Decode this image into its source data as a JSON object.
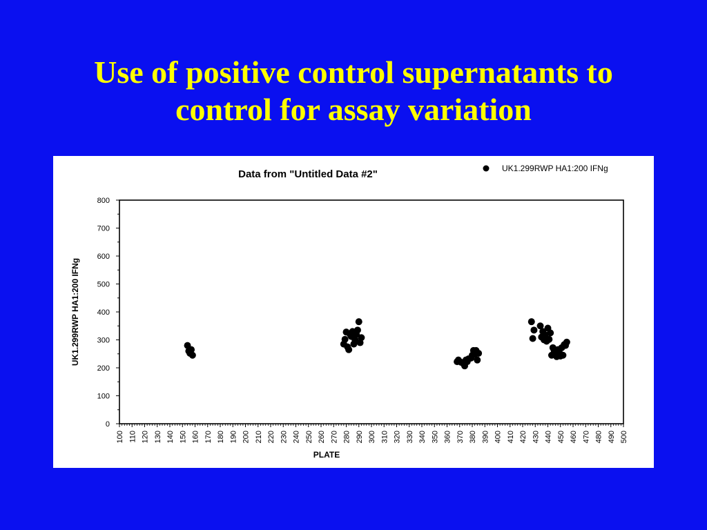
{
  "slide": {
    "title_line1": "Use of positive control supernatants to",
    "title_line2": "control for assay variation",
    "title_color": "#ffff00",
    "background_color": "#0a10f0"
  },
  "chart_data": {
    "type": "scatter",
    "title": "Data from \"Untitled Data #2\"",
    "xlabel": "PLATE",
    "ylabel": "UK1.299RWP HA1:200 IFNg",
    "xlim": [
      100,
      500
    ],
    "ylim": [
      0,
      800
    ],
    "x_ticks": [
      100,
      110,
      120,
      130,
      140,
      150,
      160,
      170,
      180,
      190,
      200,
      210,
      220,
      230,
      240,
      250,
      260,
      270,
      280,
      290,
      300,
      310,
      320,
      330,
      340,
      350,
      360,
      370,
      380,
      390,
      400,
      410,
      420,
      430,
      440,
      450,
      460,
      470,
      480,
      490,
      500
    ],
    "y_ticks": [
      0,
      100,
      200,
      300,
      400,
      500,
      600,
      700,
      800
    ],
    "grid": false,
    "legend_position": "top-right",
    "series": [
      {
        "name": "UK1.299RWP HA1:200 IFNg",
        "color": "#000000",
        "marker": "circle",
        "points": [
          {
            "x": 154,
            "y": 280
          },
          {
            "x": 155,
            "y": 260
          },
          {
            "x": 156,
            "y": 252
          },
          {
            "x": 157,
            "y": 265
          },
          {
            "x": 158,
            "y": 245
          },
          {
            "x": 278,
            "y": 285
          },
          {
            "x": 279,
            "y": 302
          },
          {
            "x": 280,
            "y": 328
          },
          {
            "x": 281,
            "y": 275
          },
          {
            "x": 282,
            "y": 265
          },
          {
            "x": 283,
            "y": 320
          },
          {
            "x": 284,
            "y": 312
          },
          {
            "x": 285,
            "y": 330
          },
          {
            "x": 286,
            "y": 285
          },
          {
            "x": 287,
            "y": 300
          },
          {
            "x": 288,
            "y": 320
          },
          {
            "x": 289,
            "y": 335
          },
          {
            "x": 290,
            "y": 365
          },
          {
            "x": 291,
            "y": 290
          },
          {
            "x": 292,
            "y": 308
          },
          {
            "x": 368,
            "y": 222
          },
          {
            "x": 369,
            "y": 228
          },
          {
            "x": 371,
            "y": 220
          },
          {
            "x": 373,
            "y": 215
          },
          {
            "x": 374,
            "y": 207
          },
          {
            "x": 375,
            "y": 228
          },
          {
            "x": 376,
            "y": 222
          },
          {
            "x": 377,
            "y": 232
          },
          {
            "x": 379,
            "y": 235
          },
          {
            "x": 380,
            "y": 245
          },
          {
            "x": 381,
            "y": 262
          },
          {
            "x": 382,
            "y": 248
          },
          {
            "x": 383,
            "y": 262
          },
          {
            "x": 384,
            "y": 228
          },
          {
            "x": 385,
            "y": 252
          },
          {
            "x": 427,
            "y": 365
          },
          {
            "x": 428,
            "y": 305
          },
          {
            "x": 429,
            "y": 335
          },
          {
            "x": 434,
            "y": 350
          },
          {
            "x": 435,
            "y": 310
          },
          {
            "x": 436,
            "y": 330
          },
          {
            "x": 437,
            "y": 300
          },
          {
            "x": 438,
            "y": 318
          },
          {
            "x": 439,
            "y": 295
          },
          {
            "x": 440,
            "y": 342
          },
          {
            "x": 441,
            "y": 302
          },
          {
            "x": 442,
            "y": 325
          },
          {
            "x": 443,
            "y": 245
          },
          {
            "x": 444,
            "y": 272
          },
          {
            "x": 445,
            "y": 262
          },
          {
            "x": 446,
            "y": 250
          },
          {
            "x": 447,
            "y": 240
          },
          {
            "x": 448,
            "y": 265
          },
          {
            "x": 449,
            "y": 255
          },
          {
            "x": 450,
            "y": 242
          },
          {
            "x": 451,
            "y": 272
          },
          {
            "x": 452,
            "y": 245
          },
          {
            "x": 453,
            "y": 283
          },
          {
            "x": 454,
            "y": 280
          },
          {
            "x": 455,
            "y": 292
          }
        ]
      }
    ]
  }
}
